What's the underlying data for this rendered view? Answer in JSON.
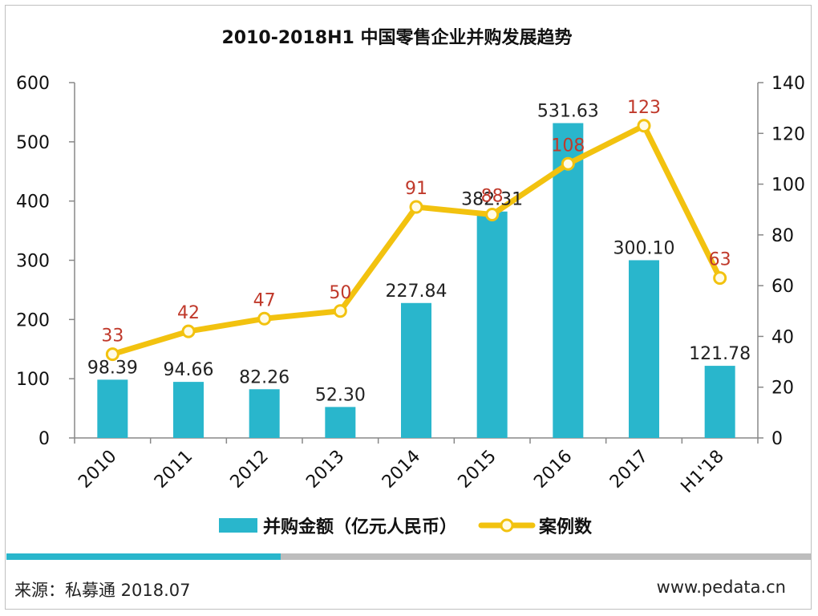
{
  "chart_data": {
    "type": "bar",
    "title": "2010-2018H1 中国零售企业并购发展趋势",
    "categories": [
      "2010",
      "2011",
      "2012",
      "2013",
      "2014",
      "2015",
      "2016",
      "2017",
      "H1'18"
    ],
    "series": [
      {
        "name": "并购金额（亿元人民币）",
        "type": "bar",
        "axis": "left",
        "color": "#29b6cc",
        "values": [
          98.39,
          94.66,
          82.26,
          52.3,
          227.84,
          382.31,
          531.63,
          300.1,
          121.78
        ],
        "labels": [
          "98.39",
          "94.66",
          "82.26",
          "52.30",
          "227.84",
          "382.31",
          "531.63",
          "300.10",
          "121.78"
        ]
      },
      {
        "name": "案例数",
        "type": "line",
        "axis": "right",
        "color": "#f2c20f",
        "label_color": "#c0392b",
        "values": [
          33,
          42,
          47,
          50,
          91,
          88,
          108,
          123,
          63
        ],
        "labels": [
          "33",
          "42",
          "47",
          "50",
          "91",
          "88",
          "108",
          "123",
          "63"
        ]
      }
    ],
    "y_left": {
      "min": 0,
      "max": 600,
      "ticks": [
        "0",
        "100",
        "200",
        "300",
        "400",
        "500",
        "600"
      ]
    },
    "y_right": {
      "min": 0,
      "max": 140,
      "ticks": [
        "0",
        "20",
        "40",
        "60",
        "80",
        "100",
        "120",
        "140"
      ]
    },
    "grid": false,
    "legend_position": "bottom"
  },
  "footer": {
    "source": "来源：私募通  2018.07",
    "website": "www.pedata.cn"
  }
}
